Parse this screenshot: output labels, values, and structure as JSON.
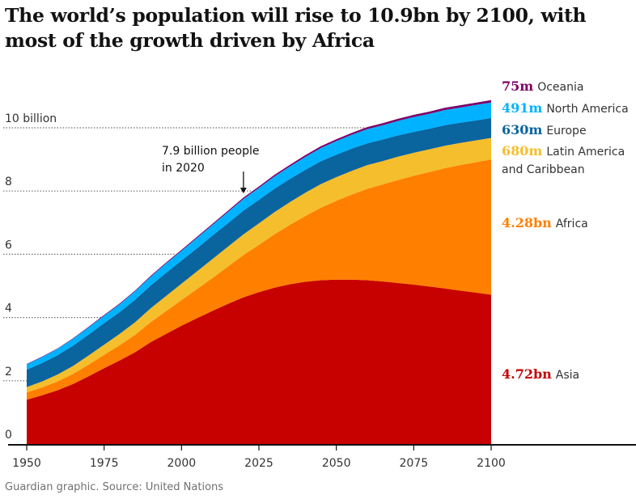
{
  "title": "The world’s population will rise to 10.9bn by 2100, with most of the growth driven by Africa",
  "footer": "Guardian graphic. Source: United Nations",
  "annotation": {
    "line1": "7.9 billion people",
    "line2": "in 2020",
    "year": 2020,
    "value": 7.9
  },
  "chart_data": {
    "type": "area",
    "stacked": true,
    "x": [
      1950,
      1955,
      1960,
      1965,
      1970,
      1975,
      1980,
      1985,
      1990,
      1995,
      2000,
      2005,
      2010,
      2015,
      2020,
      2025,
      2030,
      2035,
      2040,
      2045,
      2050,
      2055,
      2060,
      2065,
      2070,
      2075,
      2080,
      2085,
      2090,
      2095,
      2100
    ],
    "xlim": [
      1950,
      2100
    ],
    "ylim": [
      0,
      10.9
    ],
    "x_ticks": [
      "1950",
      "1975",
      "2000",
      "2025",
      "2050",
      "2075",
      "2100"
    ],
    "y_ticks": [
      {
        "value": 0,
        "label": "0"
      },
      {
        "value": 2,
        "label": "2"
      },
      {
        "value": 4,
        "label": "4"
      },
      {
        "value": 6,
        "label": "6"
      },
      {
        "value": 8,
        "label": "8"
      },
      {
        "value": 10,
        "label": "10 billion"
      }
    ],
    "series": [
      {
        "name": "Asia",
        "label_value": "4.72bn",
        "color": "#c70000",
        "values": [
          1.4,
          1.54,
          1.7,
          1.9,
          2.14,
          2.4,
          2.64,
          2.9,
          3.22,
          3.48,
          3.74,
          3.98,
          4.21,
          4.43,
          4.64,
          4.8,
          4.94,
          5.05,
          5.13,
          5.18,
          5.2,
          5.2,
          5.18,
          5.14,
          5.09,
          5.04,
          4.98,
          4.92,
          4.85,
          4.79,
          4.72
        ]
      },
      {
        "name": "Africa",
        "label_value": "4.28bn",
        "color": "#ff7f00",
        "values": [
          0.23,
          0.25,
          0.28,
          0.32,
          0.37,
          0.42,
          0.48,
          0.55,
          0.63,
          0.72,
          0.81,
          0.92,
          1.04,
          1.18,
          1.34,
          1.5,
          1.69,
          1.88,
          2.08,
          2.29,
          2.49,
          2.69,
          2.89,
          3.07,
          3.26,
          3.44,
          3.62,
          3.8,
          3.97,
          4.12,
          4.28
        ]
      },
      {
        "name": "Latin America and Caribbean",
        "label_value": "680m",
        "color": "#f5be2c",
        "values": [
          0.17,
          0.19,
          0.22,
          0.25,
          0.29,
          0.32,
          0.36,
          0.4,
          0.44,
          0.48,
          0.52,
          0.56,
          0.6,
          0.63,
          0.65,
          0.68,
          0.7,
          0.72,
          0.74,
          0.75,
          0.75,
          0.75,
          0.75,
          0.74,
          0.74,
          0.73,
          0.72,
          0.71,
          0.7,
          0.69,
          0.68
        ]
      },
      {
        "name": "Europe",
        "label_value": "630m",
        "color": "#0a649e",
        "values": [
          0.55,
          0.58,
          0.61,
          0.64,
          0.66,
          0.68,
          0.69,
          0.71,
          0.72,
          0.73,
          0.73,
          0.73,
          0.74,
          0.74,
          0.75,
          0.74,
          0.74,
          0.73,
          0.72,
          0.72,
          0.71,
          0.7,
          0.69,
          0.68,
          0.67,
          0.66,
          0.65,
          0.65,
          0.64,
          0.63,
          0.63
        ]
      },
      {
        "name": "North America",
        "label_value": "491m",
        "color": "#00b2ff",
        "values": [
          0.17,
          0.19,
          0.2,
          0.22,
          0.23,
          0.24,
          0.25,
          0.27,
          0.28,
          0.3,
          0.31,
          0.33,
          0.34,
          0.36,
          0.37,
          0.38,
          0.39,
          0.4,
          0.41,
          0.42,
          0.43,
          0.44,
          0.45,
          0.45,
          0.46,
          0.47,
          0.47,
          0.48,
          0.48,
          0.49,
          0.49
        ]
      },
      {
        "name": "Oceania",
        "label_value": "75m",
        "color": "#7d0068",
        "values": [
          0.013,
          0.014,
          0.016,
          0.018,
          0.019,
          0.021,
          0.023,
          0.025,
          0.027,
          0.029,
          0.031,
          0.033,
          0.036,
          0.039,
          0.043,
          0.046,
          0.049,
          0.052,
          0.055,
          0.057,
          0.06,
          0.062,
          0.064,
          0.066,
          0.068,
          0.069,
          0.071,
          0.072,
          0.073,
          0.074,
          0.075
        ]
      }
    ]
  }
}
